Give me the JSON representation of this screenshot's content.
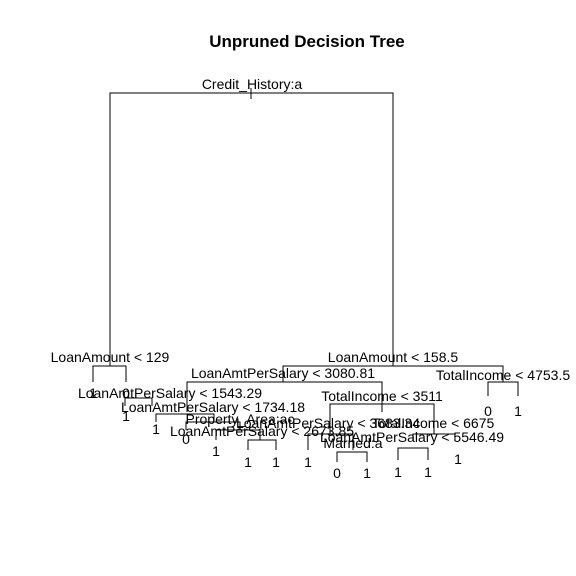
{
  "title": "Unpruned Decision Tree",
  "tree": {
    "split_labels": [
      "Credit_History:a",
      "LoanAmount < 129",
      "LoanAmount < 158.5",
      "LoanAmtPerSalary < 1543.29",
      "LoanAmtPerSalary < 3080.81",
      "TotalIncome < 4753.5",
      "LoanAmtPerSalary < 1734.18",
      "TotalIncome < 3511",
      "Property_Area:ac",
      "LoanAmtPerSalary < 2673.85",
      "LoanAmtPerSalary < 3683.34",
      "TotalIncome < 6675",
      "LoanAmtPerSalary < 5546.49",
      "Married:a"
    ],
    "leaf_labels": [
      "1",
      "0",
      "0",
      "1",
      "1",
      "0",
      "1",
      "1",
      "1",
      "1",
      "1",
      "0",
      "1",
      "1",
      "1",
      "1",
      "0",
      "1"
    ]
  }
}
